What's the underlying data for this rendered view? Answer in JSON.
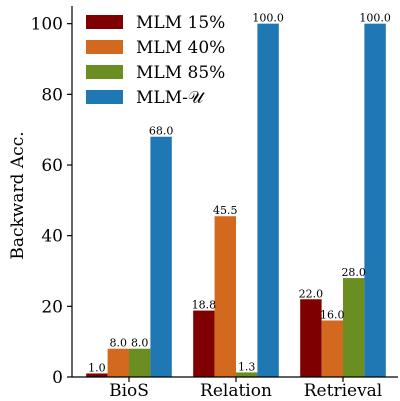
{
  "chart_data": {
    "type": "bar",
    "categories": [
      "BioS",
      "Relation",
      "Retrieval"
    ],
    "series": [
      {
        "name": "MLM 15%",
        "color": "#7f0000",
        "values": [
          1.0,
          18.8,
          22.0
        ],
        "labels": [
          "1.0",
          "18.8",
          "22.0"
        ]
      },
      {
        "name": "MLM 40%",
        "color": "#d2691e",
        "values": [
          8.0,
          45.5,
          16.0
        ],
        "labels": [
          "8.0",
          "45.5",
          "16.0"
        ]
      },
      {
        "name": "MLM 85%",
        "color": "#6b8e23",
        "values": [
          8.0,
          1.3,
          28.0
        ],
        "labels": [
          "8.0",
          "1.3",
          "28.0"
        ]
      },
      {
        "name": "MLM-𝒰",
        "color": "#1f77b4",
        "values": [
          68.0,
          100.0,
          100.0
        ],
        "labels": [
          "68.0",
          "100.0",
          "100.0"
        ]
      }
    ],
    "xlabel": "",
    "ylabel": "Backward Acc.",
    "ylim": [
      0,
      105
    ],
    "yticks": [
      0,
      20,
      40,
      60,
      80,
      100
    ],
    "grid": false,
    "legend_position": "top-left"
  }
}
